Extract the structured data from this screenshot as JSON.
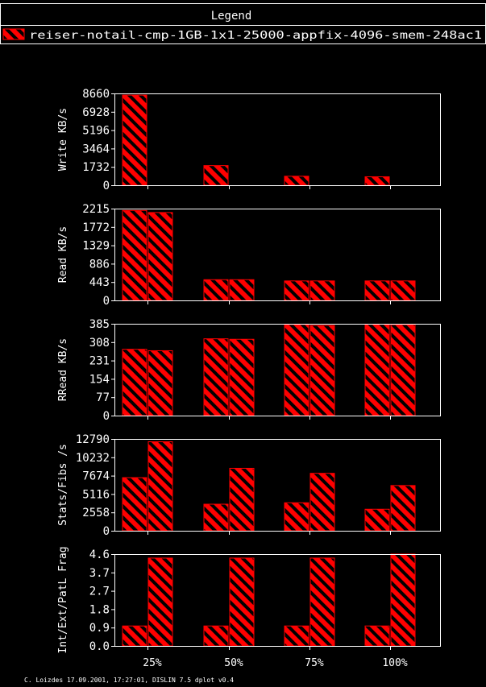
{
  "legend": {
    "title": "Legend",
    "entries": [
      "reiser-notail-cmp-1GB-1x1-25000-appfix-4096-smem-248ac1"
    ]
  },
  "footer": "C. Loizdes 17.09.2001, 17:27:01, DISLIN 7.5 dplot v0.4",
  "colors": {
    "background": "#000000",
    "bar": "#ff0000",
    "hatch": "#000000",
    "frame": "#ffffff",
    "text": "#ffffff"
  },
  "chart_data": [
    {
      "type": "bar",
      "ylabel": "Write KB/s",
      "categories": [
        "25%",
        "50%",
        "75%",
        "100%"
      ],
      "yticks": [
        "0",
        "1732",
        "3464",
        "5196",
        "6928",
        "8660"
      ],
      "ylim": [
        0,
        8660
      ],
      "series": [
        {
          "values": [
            8500,
            1850,
            850,
            800
          ]
        }
      ]
    },
    {
      "type": "bar",
      "ylabel": "Read KB/s",
      "categories": [
        "25%",
        "50%",
        "75%",
        "100%"
      ],
      "yticks": [
        "0",
        "443",
        "886",
        "1329",
        "1772",
        "2215"
      ],
      "ylim": [
        0,
        2215
      ],
      "series": [
        {
          "values": [
            2170,
            500,
            470,
            470
          ]
        },
        {
          "values": [
            2120,
            500,
            470,
            470
          ]
        }
      ]
    },
    {
      "type": "bar",
      "ylabel": "RRead KB/s",
      "categories": [
        "25%",
        "50%",
        "75%",
        "100%"
      ],
      "yticks": [
        "0",
        "77",
        "154",
        "231",
        "308",
        "385"
      ],
      "ylim": [
        0,
        385
      ],
      "series": [
        {
          "values": [
            278,
            322,
            382,
            383
          ]
        },
        {
          "values": [
            272,
            320,
            378,
            381
          ]
        }
      ]
    },
    {
      "type": "bar",
      "ylabel": "Stats/Fibs /s",
      "categories": [
        "25%",
        "50%",
        "75%",
        "100%"
      ],
      "yticks": [
        "0",
        "2558",
        "5116",
        "7674",
        "10232",
        "12790"
      ],
      "ylim": [
        0,
        12790
      ],
      "series": [
        {
          "values": [
            7400,
            3700,
            3900,
            3000
          ]
        },
        {
          "values": [
            12400,
            8700,
            8000,
            6300
          ]
        }
      ]
    },
    {
      "type": "bar",
      "ylabel": "Int/Ext/PatL Frag",
      "categories": [
        "25%",
        "50%",
        "75%",
        "100%"
      ],
      "yticks": [
        "0.0",
        "0.9",
        "1.8",
        "2.7",
        "3.7",
        "4.6"
      ],
      "ylim": [
        0,
        4.6
      ],
      "series": [
        {
          "values": [
            1.0,
            1.0,
            1.0,
            1.0
          ]
        },
        {
          "values": [
            4.4,
            4.4,
            4.4,
            4.6
          ]
        }
      ]
    }
  ]
}
